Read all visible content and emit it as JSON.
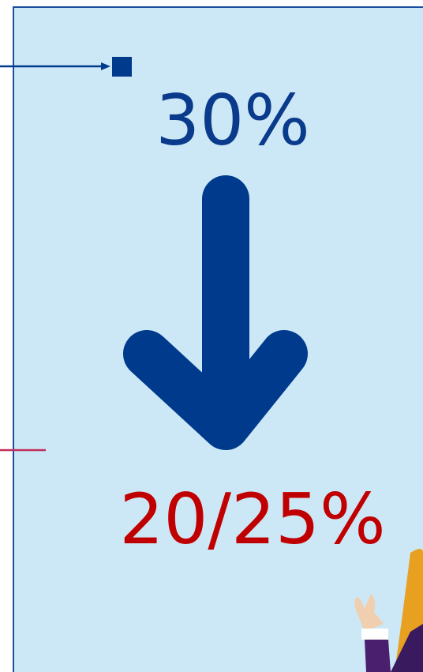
{
  "panel": {
    "top_value": "30%",
    "bottom_value": "20/25%"
  }
}
